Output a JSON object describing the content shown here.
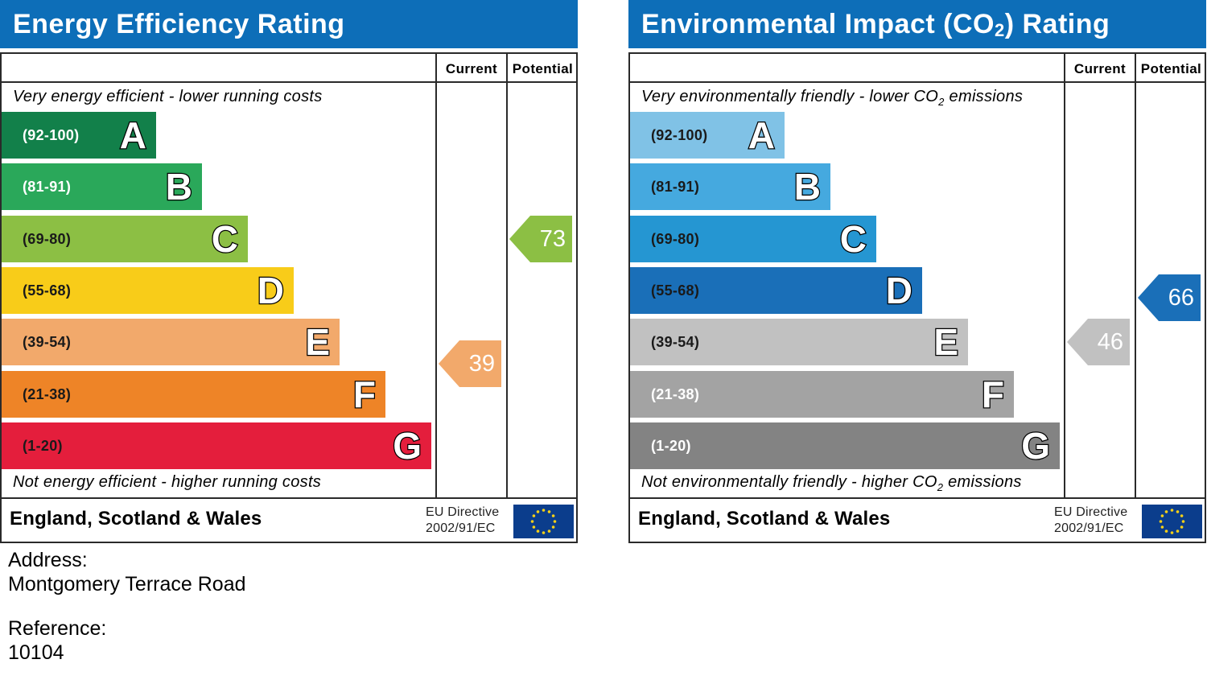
{
  "charts": [
    {
      "id": "energy",
      "title": "Energy Efficiency Rating",
      "columns": [
        "Current",
        "Potential"
      ],
      "top_note": "Very energy efficient - lower running costs",
      "bottom_note": "Not energy efficient - higher running costs",
      "bands": [
        {
          "range": "(92-100)",
          "letter": "A",
          "color": "#12804a",
          "text_color": "#ffffff"
        },
        {
          "range": "(81-91)",
          "letter": "B",
          "color": "#2aa85a",
          "text_color": "#ffffff"
        },
        {
          "range": "(69-80)",
          "letter": "C",
          "color": "#8cbf44",
          "text_color": "#1a1a1a"
        },
        {
          "range": "(55-68)",
          "letter": "D",
          "color": "#f8cc19",
          "text_color": "#1a1a1a"
        },
        {
          "range": "(39-54)",
          "letter": "E",
          "color": "#f2a96b",
          "text_color": "#1a1a1a"
        },
        {
          "range": "(21-38)",
          "letter": "F",
          "color": "#ee8427",
          "text_color": "#1a1a1a"
        },
        {
          "range": "(1-20)",
          "letter": "G",
          "color": "#e41e3c",
          "text_color": "#1a1a1a"
        }
      ],
      "current": {
        "value": "39",
        "band": "E",
        "color": "#f2a96b"
      },
      "potential": {
        "value": "73",
        "band": "C",
        "color": "#8cbf44"
      },
      "footer": {
        "country": "England, Scotland & Wales",
        "eu_line1": "EU Directive",
        "eu_line2": "2002/91/EC"
      }
    },
    {
      "id": "env",
      "title": "Environmental Impact (CO",
      "title_sub": "2",
      "title_tail": ") Rating",
      "columns": [
        "Current",
        "Potential"
      ],
      "top_note": "Very environmentally friendly - lower CO",
      "top_note_sub": "2",
      "top_note_tail": " emissions",
      "bottom_note": "Not environmentally friendly - higher CO",
      "bottom_note_sub": "2",
      "bottom_note_tail": " emissions",
      "bands": [
        {
          "range": "(92-100)",
          "letter": "A",
          "color": "#80c2e6",
          "text_color": "#1a1a1a"
        },
        {
          "range": "(81-91)",
          "letter": "B",
          "color": "#45a9df",
          "text_color": "#1a1a1a"
        },
        {
          "range": "(69-80)",
          "letter": "C",
          "color": "#2596d2",
          "text_color": "#1a1a1a"
        },
        {
          "range": "(55-68)",
          "letter": "D",
          "color": "#1a6fb8",
          "text_color": "#1a1a1a"
        },
        {
          "range": "(39-54)",
          "letter": "E",
          "color": "#c1c1c1",
          "text_color": "#1a1a1a"
        },
        {
          "range": "(21-38)",
          "letter": "F",
          "color": "#a3a3a3",
          "text_color": "#ffffff"
        },
        {
          "range": "(1-20)",
          "letter": "G",
          "color": "#838383",
          "text_color": "#ffffff"
        }
      ],
      "current": {
        "value": "46",
        "band": "E",
        "color": "#c1c1c1"
      },
      "potential": {
        "value": "66",
        "band": "D",
        "color": "#1a6fb8"
      },
      "footer": {
        "country": "England, Scotland & Wales",
        "eu_line1": "EU Directive",
        "eu_line2": "2002/91/EC"
      }
    }
  ],
  "chart_data": [
    {
      "type": "bar",
      "title": "Energy Efficiency Rating",
      "categories": [
        "A",
        "B",
        "C",
        "D",
        "E",
        "F",
        "G"
      ],
      "ranges": [
        "(92-100)",
        "(81-91)",
        "(69-80)",
        "(55-68)",
        "(39-54)",
        "(21-38)",
        "(1-20)"
      ],
      "series": [
        {
          "name": "Current",
          "value": 39,
          "band": "E"
        },
        {
          "name": "Potential",
          "value": 73,
          "band": "C"
        }
      ]
    },
    {
      "type": "bar",
      "title": "Environmental Impact (CO2) Rating",
      "categories": [
        "A",
        "B",
        "C",
        "D",
        "E",
        "F",
        "G"
      ],
      "ranges": [
        "(92-100)",
        "(81-91)",
        "(69-80)",
        "(55-68)",
        "(39-54)",
        "(21-38)",
        "(1-20)"
      ],
      "series": [
        {
          "name": "Current",
          "value": 46,
          "band": "E"
        },
        {
          "name": "Potential",
          "value": 66,
          "band": "D"
        }
      ]
    }
  ],
  "info": {
    "address_label": "Address:",
    "address_value": "Montgomery Terrace Road",
    "reference_label": "Reference:",
    "reference_value": "10104"
  }
}
